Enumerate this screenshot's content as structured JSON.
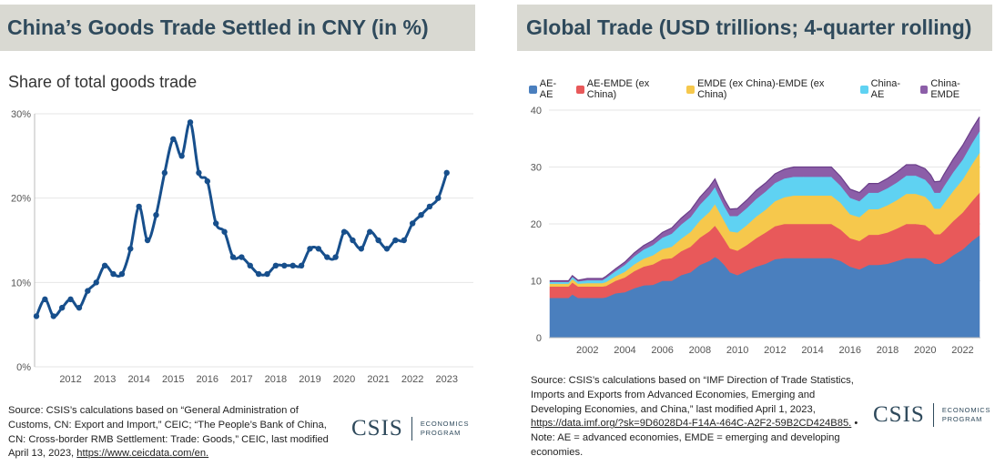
{
  "left": {
    "title": "China’s Goods Trade Settled in CNY (in %)",
    "subtitle": "Share of total goods trade",
    "source_text": "Source: CSIS’s calculations based on “General Administration of Customs, CN: Export and Import,” CEIC; “The People’s Bank of China, CN: Cross-border RMB Settlement: Trade: Goods,” CEIC, last modified April 13, 2023, ",
    "source_link": "https://www.ceicdata.com/en.",
    "logo": {
      "word": "CSIS",
      "program_line1": "ECONOMICS",
      "program_line2": "PROGRAM"
    }
  },
  "right": {
    "title": "Global Trade (USD trillions; 4-quarter rolling)",
    "source_text": "Source: CSIS’s calculations based on “IMF Direction of Trade Statistics, Imports and Exports from Advanced Economies, Emerging and Developing Economies, and China,” last modified April 1, 2023, ",
    "source_link": "https://data.imf.org/?sk=9D6028D4-F14A-464C-A2F2-59B2CD424B85.",
    "source_note": " • Note: AE = advanced economies, EMDE = emerging and developing economies.",
    "logo": {
      "word": "CSIS",
      "program_line1": "ECONOMICS",
      "program_line2": "PROGRAM"
    }
  },
  "colors": {
    "title_bg": "#d9d9d2",
    "title_text": "#2f4a5c",
    "line": "#174f8c",
    "ae_ae": "#4a7fbe",
    "ae_emde": "#e8595a",
    "emde_emde": "#f6c84c",
    "china_ae": "#5fd2f2",
    "china_emde": "#8c5ea8"
  },
  "chart_data": [
    {
      "type": "line",
      "ylim": [
        0,
        30
      ],
      "yticks": [
        "0%",
        "10%",
        "20%",
        "30%"
      ],
      "xticks": [
        "2012",
        "2013",
        "2014",
        "2015",
        "2016",
        "2017",
        "2018",
        "2019",
        "2020",
        "2021",
        "2022",
        "2023"
      ],
      "x": [
        2011.0,
        2011.25,
        2011.5,
        2011.75,
        2012.0,
        2012.25,
        2012.5,
        2012.75,
        2013.0,
        2013.25,
        2013.5,
        2013.75,
        2014.0,
        2014.25,
        2014.5,
        2014.75,
        2015.0,
        2015.25,
        2015.5,
        2015.75,
        2016.0,
        2016.25,
        2016.5,
        2016.75,
        2017.0,
        2017.25,
        2017.5,
        2017.75,
        2018.0,
        2018.25,
        2018.5,
        2018.75,
        2019.0,
        2019.25,
        2019.5,
        2019.75,
        2020.0,
        2020.25,
        2020.5,
        2020.75,
        2021.0,
        2021.25,
        2021.5,
        2021.75,
        2022.0,
        2022.25,
        2022.5,
        2022.75,
        2023.0
      ],
      "values": [
        6,
        8,
        6,
        7,
        8,
        7,
        9,
        10,
        12,
        11,
        11,
        14,
        19,
        15,
        18,
        23,
        27,
        25,
        29,
        23,
        22,
        17,
        16,
        13,
        13,
        12,
        11,
        11,
        12,
        12,
        12,
        12,
        14,
        14,
        13,
        13,
        16,
        15,
        14,
        16,
        15,
        14,
        15,
        15,
        17,
        18,
        19,
        20,
        23
      ]
    },
    {
      "type": "area",
      "stacked": true,
      "ylim": [
        0,
        40
      ],
      "yticks": [
        "0",
        "10",
        "20",
        "30",
        "40"
      ],
      "xticks": [
        "2002",
        "2004",
        "2006",
        "2008",
        "2010",
        "2012",
        "2014",
        "2016",
        "2018",
        "2020",
        "2022"
      ],
      "x": [
        2000.0,
        2001.0,
        2001.2,
        2001.5,
        2002.0,
        2002.8,
        2003.0,
        2003.5,
        2004.0,
        2004.5,
        2005.0,
        2005.5,
        2006.0,
        2006.5,
        2007.0,
        2007.5,
        2008.0,
        2008.5,
        2008.8,
        2009.0,
        2009.3,
        2009.6,
        2010.0,
        2010.5,
        2011.0,
        2011.5,
        2012.0,
        2012.5,
        2013.0,
        2013.5,
        2014.0,
        2014.5,
        2015.0,
        2015.5,
        2016.0,
        2016.5,
        2017.0,
        2017.5,
        2018.0,
        2018.5,
        2019.0,
        2019.5,
        2020.0,
        2020.3,
        2020.5,
        2020.8,
        2021.0,
        2021.5,
        2022.0,
        2022.5,
        2022.9
      ],
      "series": [
        {
          "name": "AE-AE",
          "color": "#4a7fbe",
          "values": [
            7.0,
            7.0,
            7.6,
            7.0,
            7.0,
            7.0,
            7.1,
            7.8,
            8.0,
            8.7,
            9.2,
            9.3,
            10.0,
            10.0,
            11.0,
            11.5,
            12.8,
            13.5,
            14.2,
            13.8,
            12.8,
            11.5,
            11.0,
            11.8,
            12.5,
            13.0,
            13.8,
            14.0,
            14.0,
            14.0,
            14.0,
            14.0,
            14.0,
            13.5,
            12.5,
            12.0,
            12.8,
            12.8,
            13.0,
            13.5,
            14.0,
            14.0,
            14.0,
            13.5,
            13.0,
            13.0,
            13.3,
            14.5,
            15.5,
            17.0,
            18.0
          ]
        },
        {
          "name": "AE-EMDE (ex China)",
          "color": "#e8595a",
          "values": [
            2.0,
            2.0,
            2.1,
            2.0,
            2.0,
            2.0,
            2.0,
            2.2,
            2.6,
            3.0,
            3.3,
            3.6,
            3.8,
            4.0,
            4.2,
            4.5,
            4.8,
            5.2,
            5.5,
            5.0,
            4.5,
            4.2,
            4.3,
            4.5,
            5.0,
            5.5,
            5.8,
            6.0,
            6.0,
            6.0,
            6.0,
            6.0,
            6.0,
            5.5,
            5.0,
            5.0,
            5.3,
            5.3,
            5.5,
            5.7,
            6.0,
            6.0,
            5.8,
            5.5,
            5.2,
            5.2,
            5.5,
            6.0,
            6.5,
            7.0,
            7.5
          ]
        },
        {
          "name": "EMDE (ex China)-EMDE (ex China)",
          "color": "#f6c84c",
          "values": [
            0.5,
            0.5,
            0.6,
            0.5,
            0.6,
            0.6,
            0.7,
            0.8,
            1.0,
            1.2,
            1.4,
            1.6,
            1.8,
            2.0,
            2.2,
            2.6,
            3.0,
            3.4,
            3.8,
            3.5,
            3.2,
            3.0,
            3.2,
            3.5,
            3.8,
            4.0,
            4.4,
            4.7,
            5.0,
            5.0,
            5.0,
            5.0,
            5.0,
            4.7,
            4.2,
            4.2,
            4.5,
            4.5,
            4.8,
            5.0,
            5.3,
            5.3,
            5.0,
            4.8,
            4.5,
            4.5,
            4.8,
            5.3,
            5.8,
            6.5,
            7.0
          ]
        },
        {
          "name": "China-AE",
          "color": "#5fd2f2",
          "values": [
            0.3,
            0.3,
            0.4,
            0.4,
            0.5,
            0.5,
            0.7,
            0.9,
            1.2,
            1.4,
            1.6,
            1.8,
            2.0,
            2.3,
            2.5,
            2.6,
            2.8,
            3.0,
            3.0,
            2.8,
            2.6,
            2.7,
            2.9,
            3.0,
            3.1,
            3.2,
            3.2,
            3.3,
            3.3,
            3.3,
            3.3,
            3.3,
            3.3,
            3.0,
            2.9,
            2.8,
            2.9,
            2.9,
            3.0,
            3.1,
            3.2,
            3.2,
            3.0,
            2.9,
            2.8,
            2.8,
            3.0,
            3.3,
            3.5,
            3.7,
            3.8
          ]
        },
        {
          "name": "China-EMDE",
          "color": "#8c5ea8",
          "values": [
            0.2,
            0.2,
            0.2,
            0.2,
            0.3,
            0.3,
            0.3,
            0.4,
            0.5,
            0.6,
            0.7,
            0.8,
            0.9,
            1.0,
            1.1,
            1.2,
            1.3,
            1.4,
            1.4,
            1.3,
            1.2,
            1.2,
            1.3,
            1.4,
            1.5,
            1.5,
            1.6,
            1.6,
            1.7,
            1.7,
            1.7,
            1.7,
            1.7,
            1.6,
            1.5,
            1.5,
            1.6,
            1.6,
            1.7,
            1.8,
            1.9,
            1.9,
            1.9,
            1.9,
            1.9,
            2.0,
            2.1,
            2.3,
            2.5,
            2.5,
            2.5
          ]
        }
      ]
    }
  ]
}
